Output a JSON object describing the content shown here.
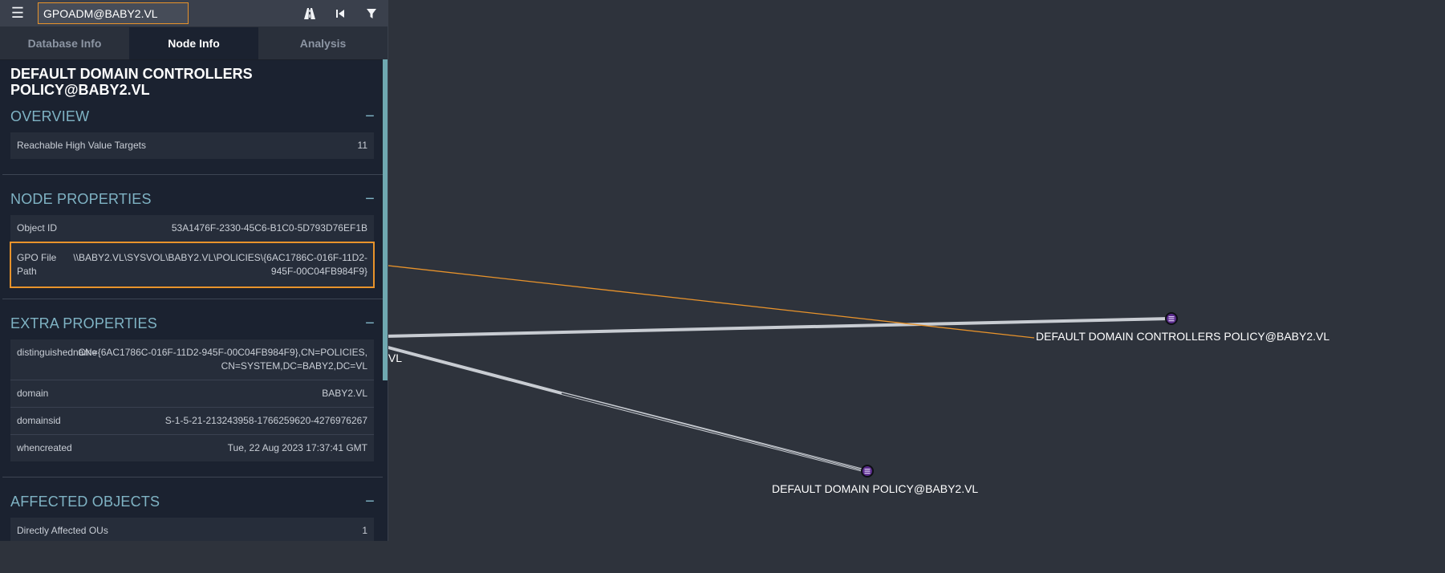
{
  "search": {
    "value": "GPOADM@BABY2.VL"
  },
  "icons": {
    "menu": "hamburger-menu-icon",
    "pathfinding": "road-icon",
    "back": "step-back-icon",
    "filter": "filter-icon"
  },
  "tabs": [
    {
      "label": "Database Info",
      "active": false
    },
    {
      "label": "Node Info",
      "active": true
    },
    {
      "label": "Analysis",
      "active": false
    }
  ],
  "node": {
    "title": "DEFAULT DOMAIN CONTROLLERS POLICY@BABY2.VL"
  },
  "overview": {
    "title": "OVERVIEW",
    "rows": [
      {
        "key": "Reachable High Value Targets",
        "value": "11"
      }
    ]
  },
  "node_properties": {
    "title": "NODE PROPERTIES",
    "rows": [
      {
        "key": "Object ID",
        "value": "53A1476F-2330-45C6-B1C0-5D793D76EF1B"
      },
      {
        "key": "GPO File Path",
        "value": "\\\\BABY2.VL\\SYSVOL\\BABY2.VL\\POLICIES\\{6AC1786C-016F-11D2-945F-00C04FB984F9}"
      }
    ]
  },
  "extra_properties": {
    "title": "EXTRA PROPERTIES",
    "rows": [
      {
        "key": "distinguishedname",
        "value": "CN={6AC1786C-016F-11D2-945F-00C04FB984F9},CN=POLICIES,CN=SYSTEM,DC=BABY2,DC=VL"
      },
      {
        "key": "domain",
        "value": "BABY2.VL"
      },
      {
        "key": "domainsid",
        "value": "S-1-5-21-213243958-1766259620-4276976267"
      },
      {
        "key": "whencreated",
        "value": "Tue, 22 Aug 2023 17:37:41 GMT"
      }
    ]
  },
  "affected_objects": {
    "title": "AFFECTED OBJECTS",
    "rows": [
      {
        "key": "Directly Affected OUs",
        "value": "1"
      }
    ]
  },
  "graph": {
    "nodes": [
      {
        "label": "DEFAULT DOMAIN CONTROLLERS POLICY@BABY2.VL",
        "icon": "gpo-icon"
      },
      {
        "label": "DEFAULT DOMAIN POLICY@BABY2.VL",
        "icon": "gpo-icon"
      },
      {
        "label": ".VL"
      }
    ],
    "colors": {
      "highlight_edge": "#e8932b",
      "edge": "#c8ccd2",
      "node": "#5a2b8c",
      "accent": "#e8932b"
    }
  }
}
